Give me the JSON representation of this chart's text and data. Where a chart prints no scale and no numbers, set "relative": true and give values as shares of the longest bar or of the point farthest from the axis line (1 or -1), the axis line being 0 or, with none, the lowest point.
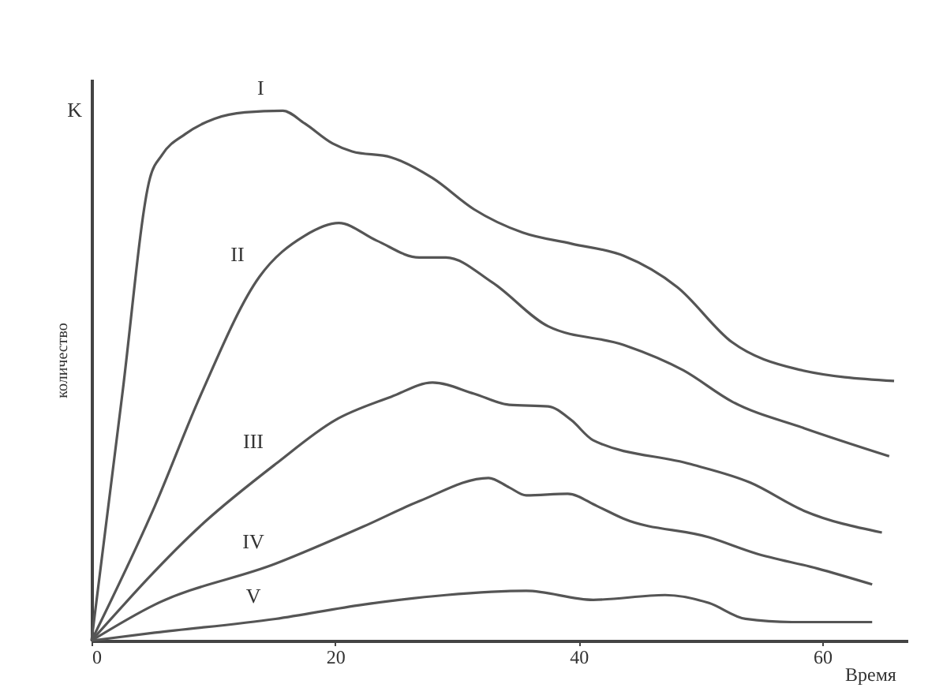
{
  "chart_data": {
    "type": "line",
    "relative": true,
    "xlabel": "Время",
    "ylabel": "количество",
    "xlim": [
      0,
      67
    ],
    "xticks": [
      0,
      20,
      40,
      60
    ],
    "grid": false,
    "annotations": [
      "K"
    ],
    "series": [
      {
        "name": "I",
        "color": "#555555",
        "x": [
          0,
          2.5,
          4.8,
          5.8,
          7.7,
          10.1,
          12.6,
          15.7,
          17.5,
          19.8,
          21.4,
          24.6,
          28,
          31.4,
          35.4,
          39.4,
          43.7,
          48.1,
          52.6,
          57.8,
          65.9
        ],
        "values": [
          0,
          0.46,
          0.873,
          0.917,
          0.956,
          0.985,
          0.997,
          1.0,
          0.976,
          0.938,
          0.923,
          0.912,
          0.873,
          0.814,
          0.77,
          0.749,
          0.726,
          0.667,
          0.563,
          0.513,
          0.49
        ]
      },
      {
        "name": "II",
        "color": "#555555",
        "x": [
          0,
          5.2,
          8.9,
          13.8,
          17.5,
          20.3,
          23.4,
          26.9,
          29.1,
          32.9,
          37.5,
          43.7,
          48.6,
          52.6,
          58.5,
          65.5
        ],
        "values": [
          0,
          0.254,
          0.46,
          0.687,
          0.764,
          0.788,
          0.755,
          0.723,
          0.723,
          0.676,
          0.593,
          0.558,
          0.51,
          0.451,
          0.401,
          0.348
        ]
      },
      {
        "name": "III",
        "color": "#555555",
        "x": [
          0,
          9.3,
          15.1,
          20,
          24.6,
          28,
          31.4,
          34.3,
          37.5,
          39.4,
          41.2,
          49.2,
          54.1,
          58.5,
          64.9
        ],
        "values": [
          0,
          0.224,
          0.333,
          0.416,
          0.46,
          0.487,
          0.466,
          0.445,
          0.442,
          0.416,
          0.378,
          0.333,
          0.298,
          0.245,
          0.204
        ]
      },
      {
        "name": "IV",
        "color": "#555555",
        "x": [
          0,
          5.2,
          15.1,
          22.3,
          26.9,
          32.6,
          34.3,
          35.7,
          39.1,
          41.5,
          43.7,
          50.7,
          54.5,
          59.6,
          64.1
        ],
        "values": [
          0,
          0.068,
          0.145,
          0.215,
          0.263,
          0.307,
          0.289,
          0.274,
          0.277,
          0.254,
          0.23,
          0.195,
          0.165,
          0.136,
          0.106
        ]
      },
      {
        "name": "V",
        "color": "#555555",
        "x": [
          0,
          5.2,
          15.1,
          22.3,
          29.1,
          35.7,
          41.2,
          47.1,
          50.7,
          53.7,
          57.5,
          64.1
        ],
        "values": [
          0,
          0.015,
          0.041,
          0.068,
          0.086,
          0.094,
          0.077,
          0.086,
          0.071,
          0.041,
          0.035,
          0.035
        ]
      }
    ]
  }
}
